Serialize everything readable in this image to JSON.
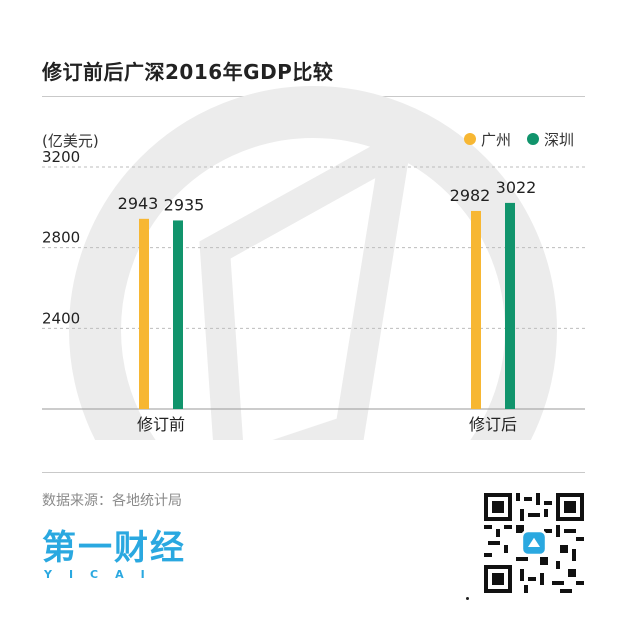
{
  "header": {
    "title": "修订前后广深2016年GDP比较"
  },
  "footer": {
    "source": "数据来源：各地统计局",
    "logo_text": "第一财经",
    "logo_sub": "YICAI"
  },
  "colors": {
    "guangzhou": "#f7b733",
    "shenzhen": "#11946c",
    "watermark": "#ececec"
  },
  "chart_data": {
    "type": "bar",
    "title": "修订前后广深2016年GDP比较",
    "ylabel": "(亿美元)",
    "xlabel": "",
    "categories": [
      "修订前",
      "修订后"
    ],
    "series": [
      {
        "name": "广州",
        "values": [
          2943,
          2982
        ]
      },
      {
        "name": "深圳",
        "values": [
          2935,
          3022
        ]
      }
    ],
    "yticks": [
      2400,
      2800,
      3200
    ],
    "ylim": [
      2000,
      3200
    ],
    "grid": "dashed",
    "legend": "top-right",
    "data_labels": true
  }
}
